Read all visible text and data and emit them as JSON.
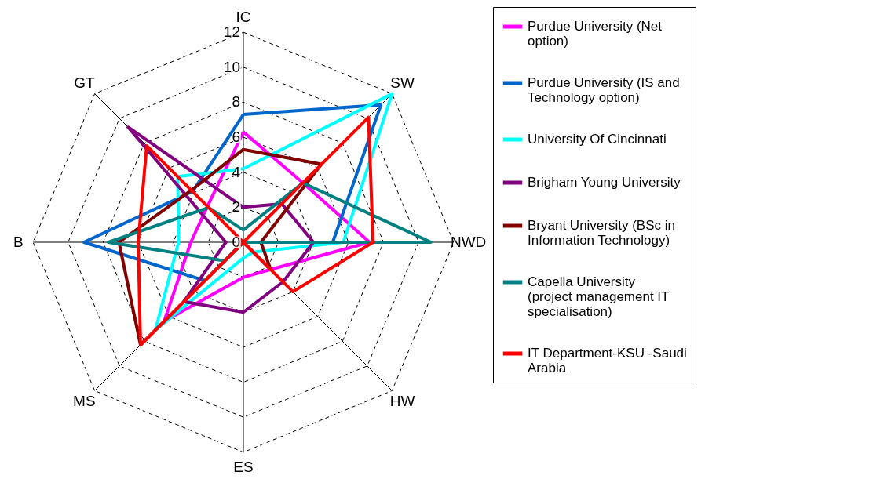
{
  "chart_data": {
    "type": "radar",
    "categories": [
      "IC",
      "SW",
      "NWD",
      "HW",
      "ES",
      "MS",
      "B",
      "GT"
    ],
    "series": [
      {
        "name": "Purdue University (Net option)",
        "color": "#ff00ff",
        "values": [
          6.3,
          4.8,
          7.2,
          2.2,
          2.0,
          6.4,
          3.0,
          2.9
        ]
      },
      {
        "name": "Purdue University (IS and Technology option)",
        "color": "#0066cc",
        "values": [
          7.3,
          11.1,
          5.1,
          0,
          0,
          3.1,
          9.1,
          4.1
        ]
      },
      {
        "name": "University Of Cincinnati",
        "color": "#00ffff",
        "values": [
          4.2,
          12.0,
          5.7,
          0.8,
          0.9,
          7.1,
          3.7,
          5.3
        ]
      },
      {
        "name": "Brigham Young University",
        "color": "#800080",
        "values": [
          2.0,
          3.1,
          4.0,
          3.2,
          4.0,
          4.8,
          1.0,
          9.3
        ]
      },
      {
        "name": "Bryant University (BSc in Information Technology)",
        "color": "#800000",
        "values": [
          5.3,
          6.3,
          1.0,
          2.2,
          0,
          8.3,
          7.1,
          4.2
        ]
      },
      {
        "name": "Capella  University (project management IT specialisation)",
        "color": "#008080",
        "values": [
          0.7,
          4.8,
          10.7,
          0,
          0,
          1.5,
          7.7,
          2.8
        ]
      },
      {
        "name": "IT Department-KSU -Saudi Arabia",
        "color": "#ff0000",
        "values": [
          0,
          10.1,
          7.4,
          4.0,
          0,
          8.3,
          6.0,
          7.8
        ]
      }
    ],
    "ylim": [
      0,
      12
    ],
    "yticks": [
      0,
      2,
      4,
      6,
      8,
      10,
      12
    ],
    "grid": true,
    "legend": "right",
    "line_style": "solid",
    "marker": "none"
  }
}
